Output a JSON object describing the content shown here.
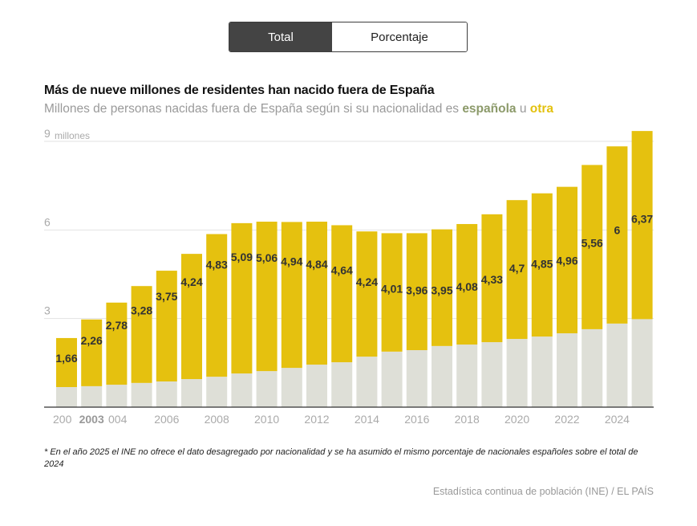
{
  "toggle": {
    "options": [
      "Total",
      "Porcentaje"
    ],
    "selected": "Total"
  },
  "title": "Más de nueve millones de residentes han nacido fuera de España",
  "subtitle": {
    "prefix": "Millones de personas nacidas fuera de España según si su nacionalidad es ",
    "spanish": "española",
    "middle": " u ",
    "other": "otra"
  },
  "colors": {
    "spanish": "#dedfd7",
    "other": "#e5c10f",
    "grid": "#e2e2e2",
    "axis": "#333333",
    "label": "#333333",
    "tick": "#aaaaaa"
  },
  "chart_data": {
    "type": "bar",
    "stacked": true,
    "title": "Más de nueve millones de residentes han nacido fuera de España",
    "subtitle": "Millones de personas nacidas fuera de España según si su nacionalidad es española u otra",
    "ylabel": "millones",
    "ylim": [
      0,
      9
    ],
    "yticks": [
      3,
      6,
      9
    ],
    "ytick_labels": [
      "3",
      "6",
      "9"
    ],
    "y_unit_label": "millones",
    "grid": true,
    "categories": [
      "2002",
      "2003",
      "2004",
      "2005",
      "2006",
      "2007",
      "2008",
      "2009",
      "2010",
      "2011",
      "2012",
      "2013",
      "2014",
      "2015",
      "2016",
      "2017",
      "2018",
      "2019",
      "2020",
      "2021",
      "2022",
      "2023",
      "2024",
      "2025"
    ],
    "xtick_labels": [
      "200",
      "2003",
      "004",
      "2006",
      "2008",
      "2010",
      "2012",
      "2014",
      "2016",
      "2018",
      "2020",
      "2022",
      "2024"
    ],
    "xtick_years": [
      2002,
      2003,
      2004,
      2006,
      2008,
      2010,
      2012,
      2014,
      2016,
      2018,
      2020,
      2022,
      2024
    ],
    "highlighted_category": "2003",
    "series": [
      {
        "name": "española",
        "values": [
          0.68,
          0.71,
          0.76,
          0.82,
          0.87,
          0.95,
          1.03,
          1.14,
          1.22,
          1.33,
          1.44,
          1.52,
          1.71,
          1.88,
          1.93,
          2.07,
          2.12,
          2.2,
          2.31,
          2.39,
          2.5,
          2.64,
          2.83,
          2.98
        ]
      },
      {
        "name": "otra",
        "values": [
          1.66,
          2.26,
          2.78,
          3.28,
          3.75,
          4.24,
          4.83,
          5.09,
          5.06,
          4.94,
          4.84,
          4.64,
          4.24,
          4.01,
          3.96,
          3.95,
          4.08,
          4.33,
          4.7,
          4.85,
          4.96,
          5.56,
          6,
          6.37
        ]
      }
    ],
    "data_labels": [
      "1,66",
      "2,26",
      "2,78",
      "3,28",
      "3,75",
      "4,24",
      "4,83",
      "5,09",
      "5,06",
      "4,94",
      "4,84",
      "4,64",
      "4,24",
      "4,01",
      "3,96",
      "3,95",
      "4,08",
      "4,33",
      "4,7",
      "4,85",
      "4,96",
      "5,56",
      "6",
      "6,37"
    ]
  },
  "footnote": "* En el año 2025 el INE no ofrece el dato desagregado por nacionalidad y se ha asumido el mismo porcentaje de nacionales españoles sobre el total de 2024",
  "source": "Estadística continua de población (INE) / EL PAÍS"
}
